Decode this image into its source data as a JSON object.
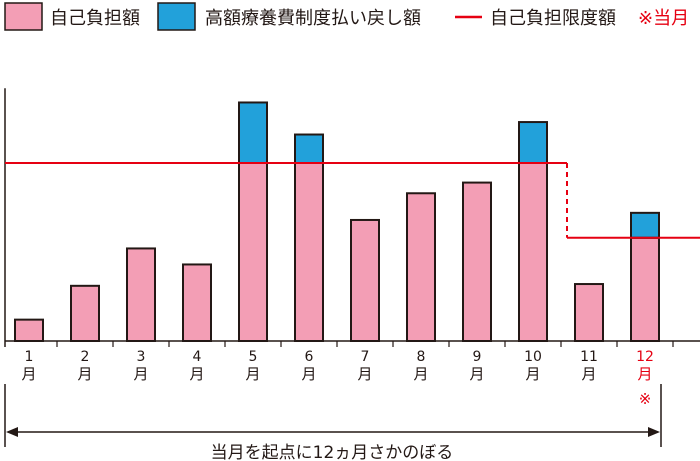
{
  "colors": {
    "outline": "#231815",
    "self_pay": "#f39eb5",
    "refund": "#22a1da",
    "limit": "#e60012",
    "highlight": "#e60012"
  },
  "chart_data": {
    "type": "bar",
    "stacked": true,
    "title": "",
    "xlabel": "",
    "ylabel": "",
    "categories": [
      "1",
      "2",
      "3",
      "4",
      "5",
      "6",
      "7",
      "8",
      "9",
      "10",
      "11",
      "12"
    ],
    "category_unit": "月",
    "series": [
      {
        "name": "自己負担額",
        "color": "#f39eb5",
        "values": [
          12,
          31,
          52,
          43,
          100,
          100,
          68,
          83,
          89,
          100,
          32,
          58
        ]
      },
      {
        "name": "高額療養費制度払い戻し額",
        "color": "#22a1da",
        "values": [
          0,
          0,
          0,
          0,
          34,
          16,
          0,
          0,
          0,
          23,
          0,
          14
        ]
      }
    ],
    "limit_line": {
      "name": "自己負担限度額",
      "color": "#e60012",
      "values": [
        100,
        100,
        100,
        100,
        100,
        100,
        100,
        100,
        100,
        100,
        58,
        58
      ]
    },
    "highlighted_category": "12",
    "highlight_mark": "※",
    "highlight_note": "※当月",
    "ylim": [
      0,
      142
    ],
    "grid": false,
    "legend_position": "top"
  },
  "span_annotation": {
    "text": "当月を起点に12ヵ月さかのぼる"
  }
}
